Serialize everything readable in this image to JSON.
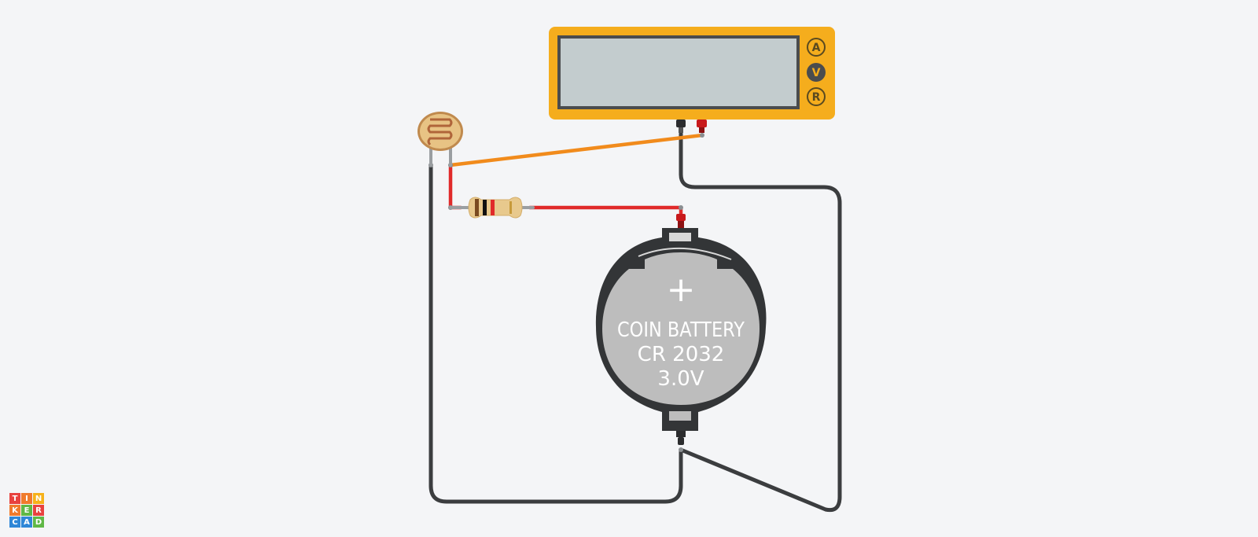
{
  "multimeter": {
    "modes": [
      {
        "key": "ammeter",
        "label": "A",
        "selected": false
      },
      {
        "key": "voltmeter",
        "label": "V",
        "selected": true
      },
      {
        "key": "ohmmeter",
        "label": "R",
        "selected": false
      }
    ],
    "display_value": ""
  },
  "battery": {
    "polarity_symbol": "+",
    "label_line1": "COIN BATTERY",
    "label_line2": "CR 2032",
    "label_line3": "3.0V"
  },
  "logo": {
    "letters": [
      "T",
      "I",
      "N",
      "K",
      "E",
      "R",
      "C",
      "A",
      "D"
    ],
    "colors": [
      "#e8423f",
      "#f07b2d",
      "#f6b21a",
      "#f07b2d",
      "#60b846",
      "#e8423f",
      "#2f87d7",
      "#2f87d7",
      "#60b846"
    ]
  },
  "colors": {
    "background": "#f4f5f7",
    "multimeter_body": "#f5ad1d",
    "multimeter_screen": "#c3ccce",
    "wire_orange": "#f18b1c",
    "wire_red": "#e02a2a",
    "wire_black": "#3b3d3f",
    "battery_holder": "#333537",
    "battery_cell": "#bdbdbd"
  }
}
